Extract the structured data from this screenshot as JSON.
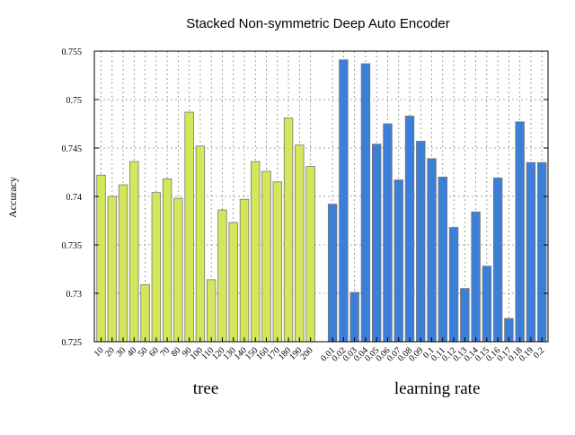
{
  "chart_data": {
    "type": "bar",
    "title": "Stacked Non-symmetric Deep Auto Encoder",
    "ylabel": "Accuracy",
    "ylim": [
      0.725,
      0.755
    ],
    "yticks": [
      0.725,
      0.73,
      0.735,
      0.74,
      0.745,
      0.75,
      0.755
    ],
    "ytick_labels": [
      "0.725",
      "0.73",
      "0.735",
      "0.74",
      "0.745",
      "0.75",
      "0.755"
    ],
    "grid": true,
    "groups": [
      {
        "label": "tree",
        "color": "#d4e65a",
        "categories": [
          "10",
          "20",
          "30",
          "40",
          "50",
          "60",
          "70",
          "80",
          "90",
          "100",
          "110",
          "120",
          "130",
          "140",
          "150",
          "160",
          "170",
          "180",
          "190",
          "200"
        ],
        "values": [
          0.7422,
          0.74,
          0.7412,
          0.7436,
          0.7309,
          0.7404,
          0.7418,
          0.7398,
          0.7487,
          0.7452,
          0.7314,
          0.7386,
          0.7373,
          0.7397,
          0.7436,
          0.7426,
          0.7415,
          0.7481,
          0.7453,
          0.7431
        ]
      },
      {
        "label": "learning rate",
        "color": "#3c7fd8",
        "categories": [
          "0.01",
          "0.02",
          "0.03",
          "0.04",
          "0.05",
          "0.06",
          "0.07",
          "0.08",
          "0.09",
          "0.1",
          "0.11",
          "0.12",
          "0.13",
          "0.14",
          "0.15",
          "0.16",
          "0.17",
          "0.18",
          "0.19",
          "0.2"
        ],
        "values": [
          0.7392,
          0.7541,
          0.7301,
          0.7537,
          0.7454,
          0.7475,
          0.7417,
          0.7483,
          0.7457,
          0.7439,
          0.742,
          0.7368,
          0.7305,
          0.7384,
          0.7328,
          0.7419,
          0.7274,
          0.7477,
          0.7435,
          0.7435
        ]
      }
    ]
  }
}
